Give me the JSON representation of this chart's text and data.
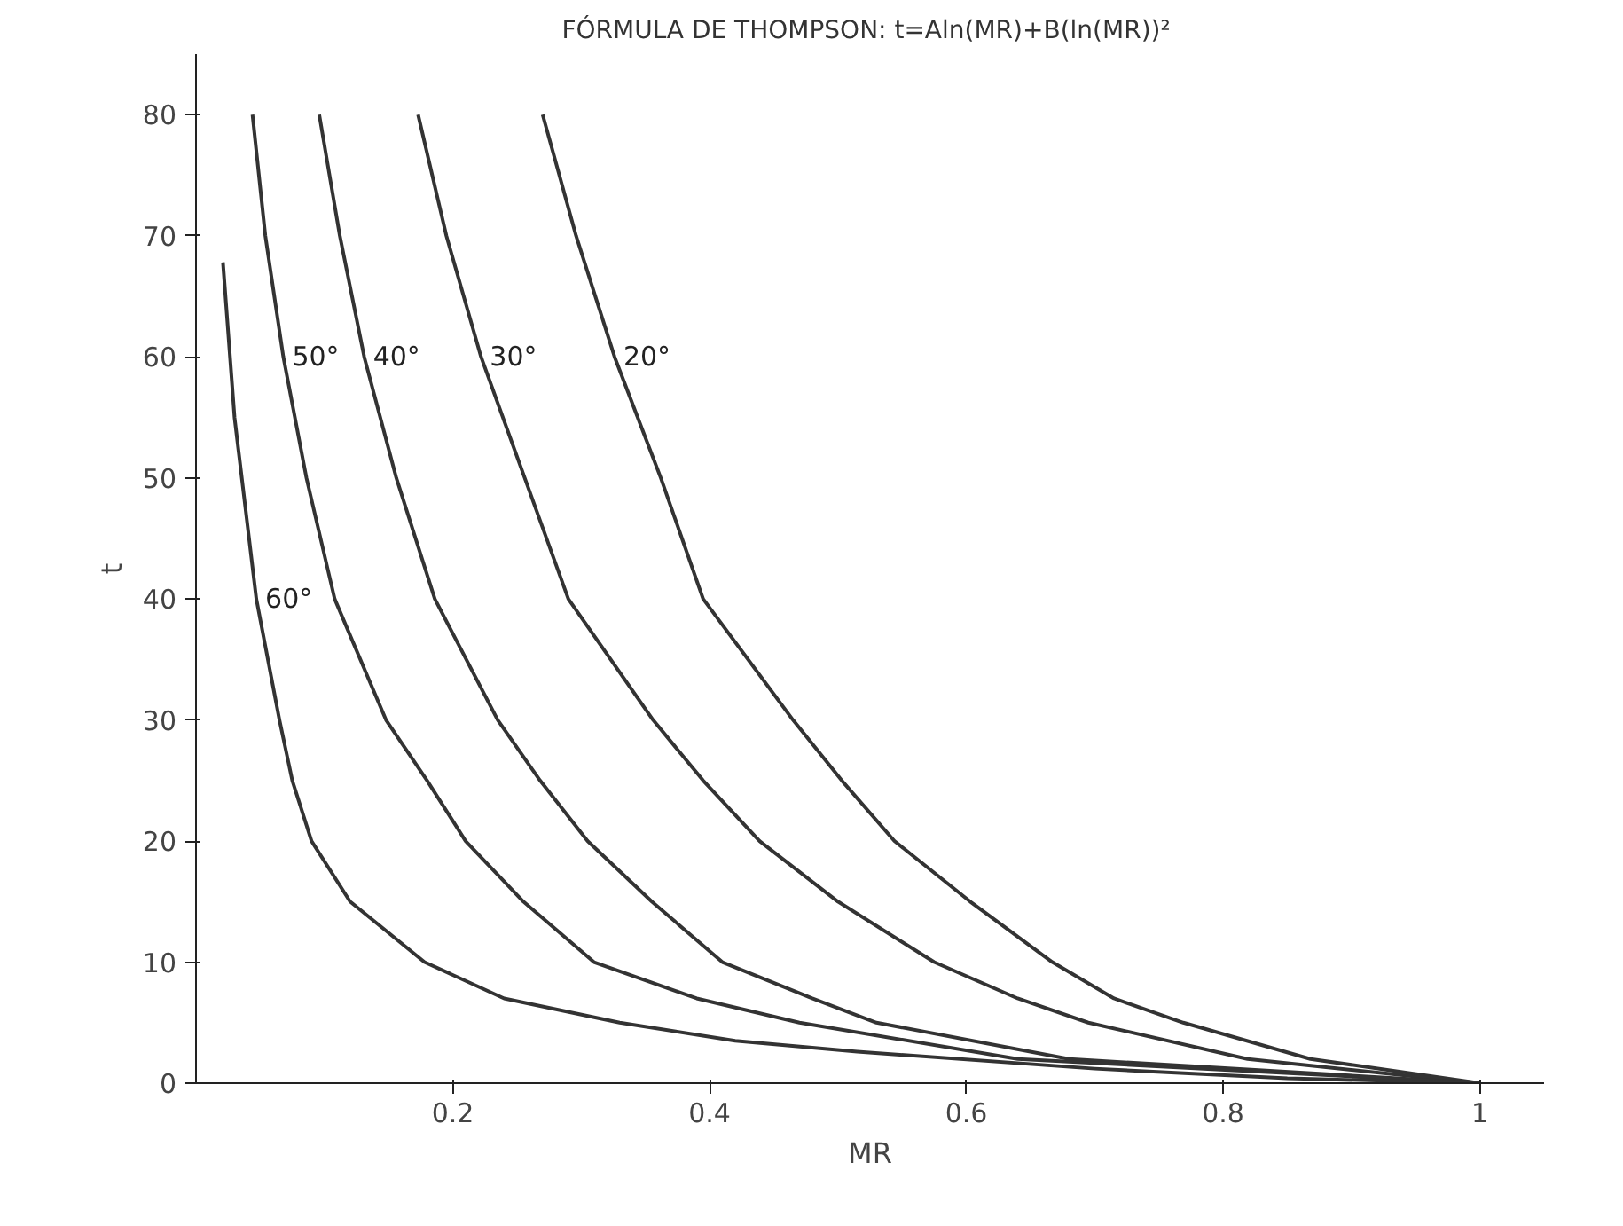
{
  "chart_data": {
    "type": "line",
    "title": "FÓRMULA DE THOMPSON:  t=Aln(MR)+B(ln(MR))²",
    "xlabel": "MR",
    "ylabel": "t",
    "xlim": [
      0,
      1.05
    ],
    "ylim": [
      0,
      85
    ],
    "xticks": [
      0.2,
      0.4,
      0.6,
      0.8,
      1
    ],
    "yticks": [
      0,
      10,
      20,
      30,
      40,
      50,
      60,
      70,
      80
    ],
    "grid": false,
    "legend": false,
    "line_style": "solid",
    "marker": "none",
    "series": [
      {
        "name": "20°",
        "color": "#333333",
        "x": [
          0.27,
          0.296,
          0.326,
          0.362,
          0.395,
          0.465,
          0.503,
          0.544,
          0.603,
          0.667,
          0.715,
          0.769,
          0.868,
          1
        ],
        "values": [
          80,
          70,
          60,
          50,
          40,
          30,
          25,
          20,
          15,
          10,
          7,
          5,
          2,
          0
        ]
      },
      {
        "name": "30°",
        "color": "#333333",
        "x": [
          0.173,
          0.195,
          0.222,
          0.256,
          0.29,
          0.356,
          0.395,
          0.439,
          0.5,
          0.575,
          0.64,
          0.695,
          0.819,
          1
        ],
        "values": [
          80,
          70,
          60,
          50,
          40,
          30,
          25,
          20,
          15,
          10,
          7,
          5,
          2,
          0
        ]
      },
      {
        "name": "40°",
        "color": "#333333",
        "x": [
          0.096,
          0.112,
          0.131,
          0.156,
          0.186,
          0.235,
          0.268,
          0.305,
          0.355,
          0.41,
          0.48,
          0.53,
          0.68,
          1
        ],
        "values": [
          80,
          70,
          60,
          50,
          40,
          30,
          25,
          20,
          15,
          10,
          7,
          5,
          2,
          0
        ]
      },
      {
        "name": "50°",
        "color": "#333333",
        "x": [
          0.044,
          0.054,
          0.068,
          0.086,
          0.108,
          0.148,
          0.18,
          0.21,
          0.255,
          0.31,
          0.39,
          0.47,
          0.64,
          1
        ],
        "values": [
          80,
          70,
          60,
          50,
          40,
          30,
          25,
          20,
          15,
          10,
          7,
          5,
          2,
          0
        ]
      },
      {
        "name": "60°",
        "color": "#333333",
        "x": [
          0.021,
          0.03,
          0.047,
          0.065,
          0.075,
          0.09,
          0.12,
          0.178,
          0.24,
          0.33,
          0.42,
          0.515,
          0.7,
          0.85,
          1
        ],
        "values": [
          67.8,
          55,
          40,
          30,
          25,
          20,
          15,
          10,
          7,
          5,
          3.5,
          2.6,
          1.2,
          0.4,
          0
        ]
      }
    ]
  }
}
